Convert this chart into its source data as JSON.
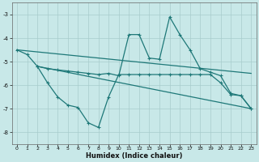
{
  "bg_color": "#c8e8e8",
  "line_color": "#1e7878",
  "grid_color": "#a8cccc",
  "xlabel": "Humidex (Indice chaleur)",
  "xlim": [
    -0.5,
    23.5
  ],
  "ylim": [
    -8.5,
    -2.5
  ],
  "yticks": [
    -8,
    -7,
    -6,
    -5,
    -4,
    -3
  ],
  "xticks": [
    0,
    1,
    2,
    3,
    4,
    5,
    6,
    7,
    8,
    9,
    10,
    11,
    12,
    13,
    14,
    15,
    16,
    17,
    18,
    19,
    20,
    21,
    22,
    23
  ],
  "line1_x": [
    0,
    1,
    2,
    3,
    4,
    5,
    6,
    7,
    8,
    9,
    10,
    11,
    12,
    13,
    14,
    15,
    16,
    17,
    18,
    19,
    20,
    21,
    22,
    23
  ],
  "line1_y": [
    -4.5,
    -4.7,
    -5.2,
    -5.3,
    -5.35,
    -5.4,
    -5.45,
    -5.5,
    -5.55,
    -5.5,
    -5.6,
    -3.85,
    -3.85,
    -4.85,
    -4.9,
    -3.1,
    -3.85,
    -4.5,
    -5.3,
    -5.45,
    -5.6,
    -6.35,
    -6.45,
    -7.0
  ],
  "trend1_x": [
    0,
    23
  ],
  "trend1_y": [
    -4.5,
    -5.5
  ],
  "line3_x": [
    2,
    3,
    4,
    5,
    6,
    7,
    8,
    9,
    10,
    11,
    12,
    13,
    14,
    15,
    16,
    17,
    18,
    19,
    20,
    21,
    22,
    23
  ],
  "line3_y": [
    -5.2,
    -5.9,
    -6.5,
    -6.85,
    -6.95,
    -7.6,
    -7.8,
    -6.5,
    -5.55,
    -5.55,
    -5.55,
    -5.55,
    -5.55,
    -5.55,
    -5.55,
    -5.55,
    -5.55,
    -5.55,
    -5.9,
    -6.4,
    -6.45,
    -7.0
  ],
  "trend2_x": [
    2,
    23
  ],
  "trend2_y": [
    -5.2,
    -7.0
  ]
}
